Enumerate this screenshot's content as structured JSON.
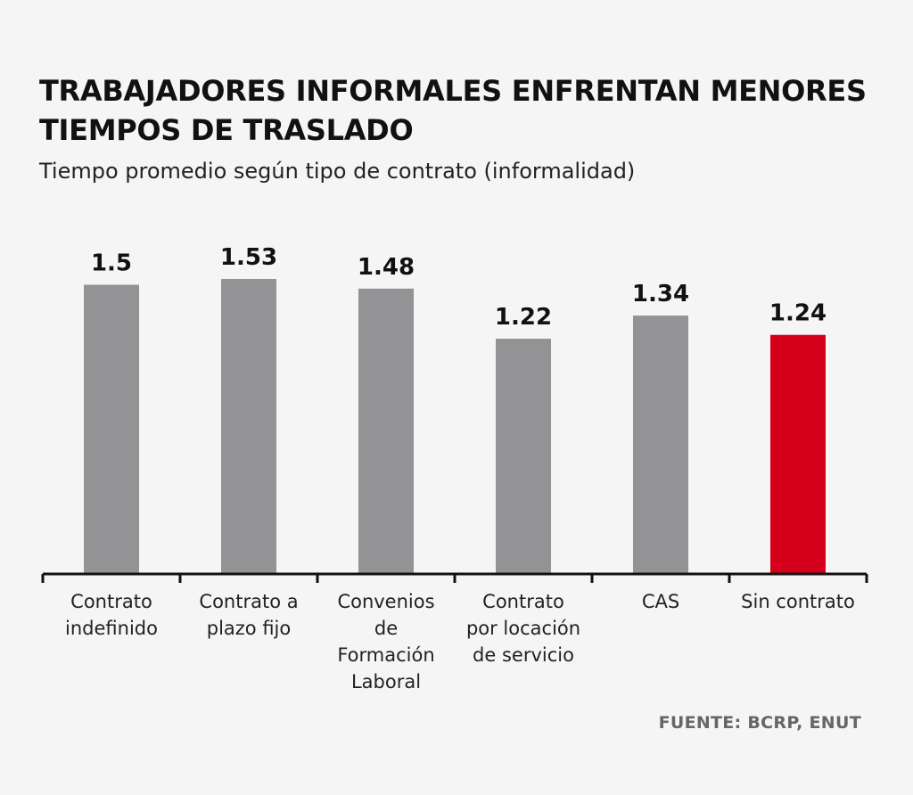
{
  "title": "TRABAJADORES INFORMALES ENFRENTAN MENORES TIEMPOS DE TRASLADO",
  "subtitle": "Tiempo promedio según tipo de contrato (informalidad)",
  "source": "FUENTE: BCRP, ENUT",
  "colors": {
    "bar": "#939395",
    "highlight": "#d5001c",
    "axis": "#111111"
  },
  "chart_data": {
    "type": "bar",
    "title": "TRABAJADORES INFORMALES ENFRENTAN MENORES TIEMPOS DE TRASLADO",
    "subtitle": "Tiempo promedio según tipo de contrato (informalidad)",
    "categories": [
      [
        "Contrato",
        "indefinido"
      ],
      [
        "Contrato a",
        "plazo fijo"
      ],
      [
        "Convenios",
        "de",
        "Formación",
        "Laboral"
      ],
      [
        "Contrato",
        "por locación",
        "de servicio"
      ],
      [
        "CAS"
      ],
      [
        "Sin contrato"
      ]
    ],
    "values": [
      1.5,
      1.53,
      1.48,
      1.22,
      1.34,
      1.24
    ],
    "value_labels": [
      "1.5",
      "1.53",
      "1.48",
      "1.22",
      "1.34",
      "1.24"
    ],
    "highlight_index": 5,
    "ylim": [
      0,
      1.53
    ],
    "xlabel": "",
    "ylabel": "",
    "grid": false
  }
}
